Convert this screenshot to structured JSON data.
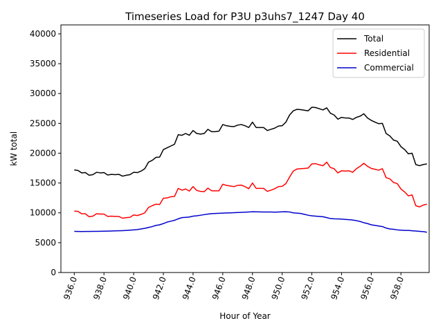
{
  "chart_data": {
    "type": "line",
    "title": "Timeseries Load for P3U p3uhs7_1247  Day 40",
    "xlabel": "Hour of Year",
    "ylabel": "kW total",
    "xlim": [
      935.1,
      959.9
    ],
    "ylim": [
      0,
      41500
    ],
    "xticks": [
      936,
      938,
      940,
      942,
      944,
      946,
      948,
      950,
      952,
      954,
      956,
      958
    ],
    "xtick_labels": [
      "936.0",
      "938.0",
      "940.0",
      "942.0",
      "944.0",
      "946.0",
      "948.0",
      "950.0",
      "952.0",
      "954.0",
      "956.0",
      "958.0"
    ],
    "yticks": [
      0,
      5000,
      10000,
      15000,
      20000,
      25000,
      30000,
      35000,
      40000
    ],
    "ytick_labels": [
      "0",
      "5000",
      "10000",
      "15000",
      "20000",
      "25000",
      "30000",
      "35000",
      "40000"
    ],
    "legend_position": "top-right",
    "x_start": 936.0,
    "x_step": 0.25,
    "series": [
      {
        "name": "Total",
        "color": "#000000",
        "values": [
          17200,
          17100,
          16700,
          16750,
          16300,
          16400,
          16800,
          16700,
          16750,
          16350,
          16450,
          16400,
          16450,
          16150,
          16300,
          16400,
          16800,
          16750,
          17000,
          17400,
          18500,
          18800,
          19300,
          19350,
          20600,
          20900,
          21200,
          21500,
          23100,
          23000,
          23300,
          23000,
          23800,
          23300,
          23200,
          23300,
          24000,
          23600,
          23600,
          23700,
          24800,
          24600,
          24500,
          24450,
          24700,
          24800,
          24600,
          24300,
          25200,
          24300,
          24300,
          24300,
          23800,
          24000,
          24200,
          24550,
          24600,
          25200,
          26400,
          27100,
          27350,
          27300,
          27200,
          27100,
          27700,
          27650,
          27450,
          27250,
          27600,
          26700,
          26400,
          25700,
          26000,
          25900,
          25900,
          25650,
          26000,
          26200,
          26600,
          25900,
          25500,
          25200,
          24950,
          25000,
          23300,
          22900,
          22200,
          22000,
          21100,
          20600,
          19900,
          20000,
          18100,
          17900,
          18100,
          18200
        ]
      },
      {
        "name": "Residential",
        "color": "#ff0000",
        "values": [
          10300,
          10250,
          9850,
          9850,
          9350,
          9450,
          9850,
          9800,
          9800,
          9400,
          9450,
          9400,
          9400,
          9100,
          9200,
          9250,
          9650,
          9550,
          9750,
          10000,
          10900,
          11200,
          11450,
          11400,
          12450,
          12500,
          12700,
          12750,
          14100,
          13800,
          14000,
          13650,
          14400,
          13750,
          13600,
          13550,
          14150,
          13700,
          13700,
          13700,
          14800,
          14600,
          14500,
          14400,
          14600,
          14650,
          14400,
          14050,
          15000,
          14100,
          14100,
          14100,
          13600,
          13800,
          14050,
          14400,
          14450,
          14900,
          16000,
          17000,
          17350,
          17400,
          17450,
          17500,
          18200,
          18250,
          18050,
          17900,
          18500,
          17600,
          17400,
          16700,
          17050,
          17000,
          17050,
          16800,
          17400,
          17800,
          18300,
          17800,
          17450,
          17300,
          17150,
          17400,
          15900,
          15700,
          15100,
          14900,
          14000,
          13500,
          12850,
          13000,
          11200,
          11000,
          11300,
          11450
        ]
      },
      {
        "name": "Commercial",
        "color": "#0000cc",
        "values": [
          6900,
          6880,
          6870,
          6880,
          6880,
          6890,
          6900,
          6910,
          6920,
          6940,
          6960,
          6980,
          7000,
          7020,
          7050,
          7100,
          7150,
          7200,
          7300,
          7400,
          7550,
          7700,
          7900,
          8000,
          8200,
          8450,
          8600,
          8750,
          9000,
          9200,
          9250,
          9300,
          9450,
          9500,
          9600,
          9700,
          9800,
          9870,
          9900,
          9930,
          9960,
          9980,
          10000,
          10020,
          10050,
          10080,
          10110,
          10150,
          10180,
          10170,
          10160,
          10150,
          10150,
          10150,
          10120,
          10140,
          10170,
          10180,
          10150,
          10000,
          9950,
          9900,
          9750,
          9600,
          9500,
          9450,
          9400,
          9350,
          9200,
          9050,
          9000,
          8980,
          8950,
          8900,
          8850,
          8800,
          8700,
          8550,
          8350,
          8200,
          8000,
          7900,
          7800,
          7700,
          7450,
          7300,
          7250,
          7150,
          7100,
          7050,
          7050,
          7000,
          6950,
          6900,
          6850,
          6750
        ]
      }
    ]
  }
}
